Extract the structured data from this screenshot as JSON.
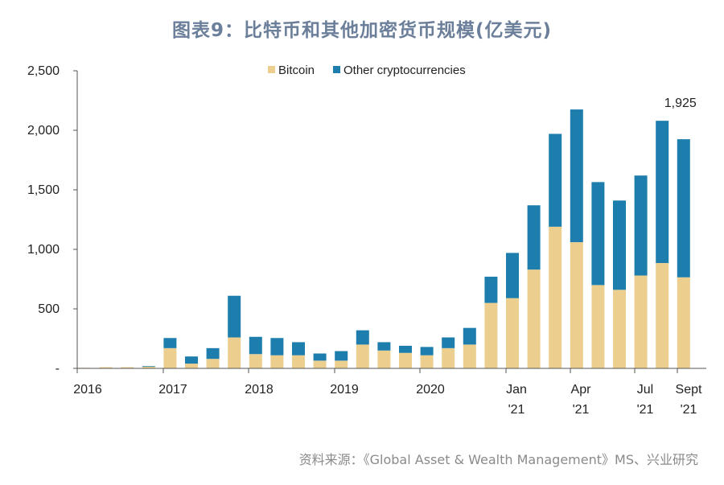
{
  "page": {
    "title": "图表9：比特币和其他加密货币规模(亿美元)",
    "source": "资料来源：《Global Asset & Wealth Management》MS、兴业研究"
  },
  "chart_data": {
    "type": "bar",
    "stacked": true,
    "title": "图表9：比特币和其他加密货币规模(亿美元)",
    "xlabel": "",
    "ylabel": "",
    "ylim": [
      0,
      2500
    ],
    "y_ticks": [
      0,
      500,
      1000,
      1500,
      2000,
      2500
    ],
    "y_tick_labels": [
      "-",
      "500",
      "1,000",
      "1,500",
      "2,000",
      "2,500"
    ],
    "grid": false,
    "legend_position": "top-center",
    "x_tick_labels": [
      {
        "line1": "2016",
        "line2": ""
      },
      {
        "line1": "2017",
        "line2": ""
      },
      {
        "line1": "2018",
        "line2": ""
      },
      {
        "line1": "2019",
        "line2": ""
      },
      {
        "line1": "2020",
        "line2": ""
      },
      {
        "line1": "Jan",
        "line2": "'21"
      },
      {
        "line1": "Apr",
        "line2": "'21"
      },
      {
        "line1": "Jul",
        "line2": "'21"
      },
      {
        "line1": "Sept",
        "line2": "'21"
      }
    ],
    "series": [
      {
        "name": "Bitcoin",
        "color": "#eccf8f",
        "values": [
          5,
          10,
          10,
          15,
          170,
          40,
          80,
          260,
          120,
          110,
          110,
          65,
          65,
          200,
          150,
          130,
          110,
          170,
          200,
          550,
          590,
          830,
          1190,
          1060,
          700,
          660,
          780,
          885,
          765
        ]
      },
      {
        "name": "Other cryptocurrencies",
        "color": "#1d7eae",
        "values": [
          0,
          0,
          0,
          5,
          85,
          60,
          90,
          350,
          145,
          145,
          110,
          60,
          80,
          120,
          70,
          60,
          70,
          90,
          140,
          220,
          380,
          540,
          780,
          1115,
          865,
          750,
          840,
          1195,
          1160
        ]
      }
    ],
    "annotations": [
      {
        "text": "1,925",
        "bar_index": 28
      }
    ]
  }
}
